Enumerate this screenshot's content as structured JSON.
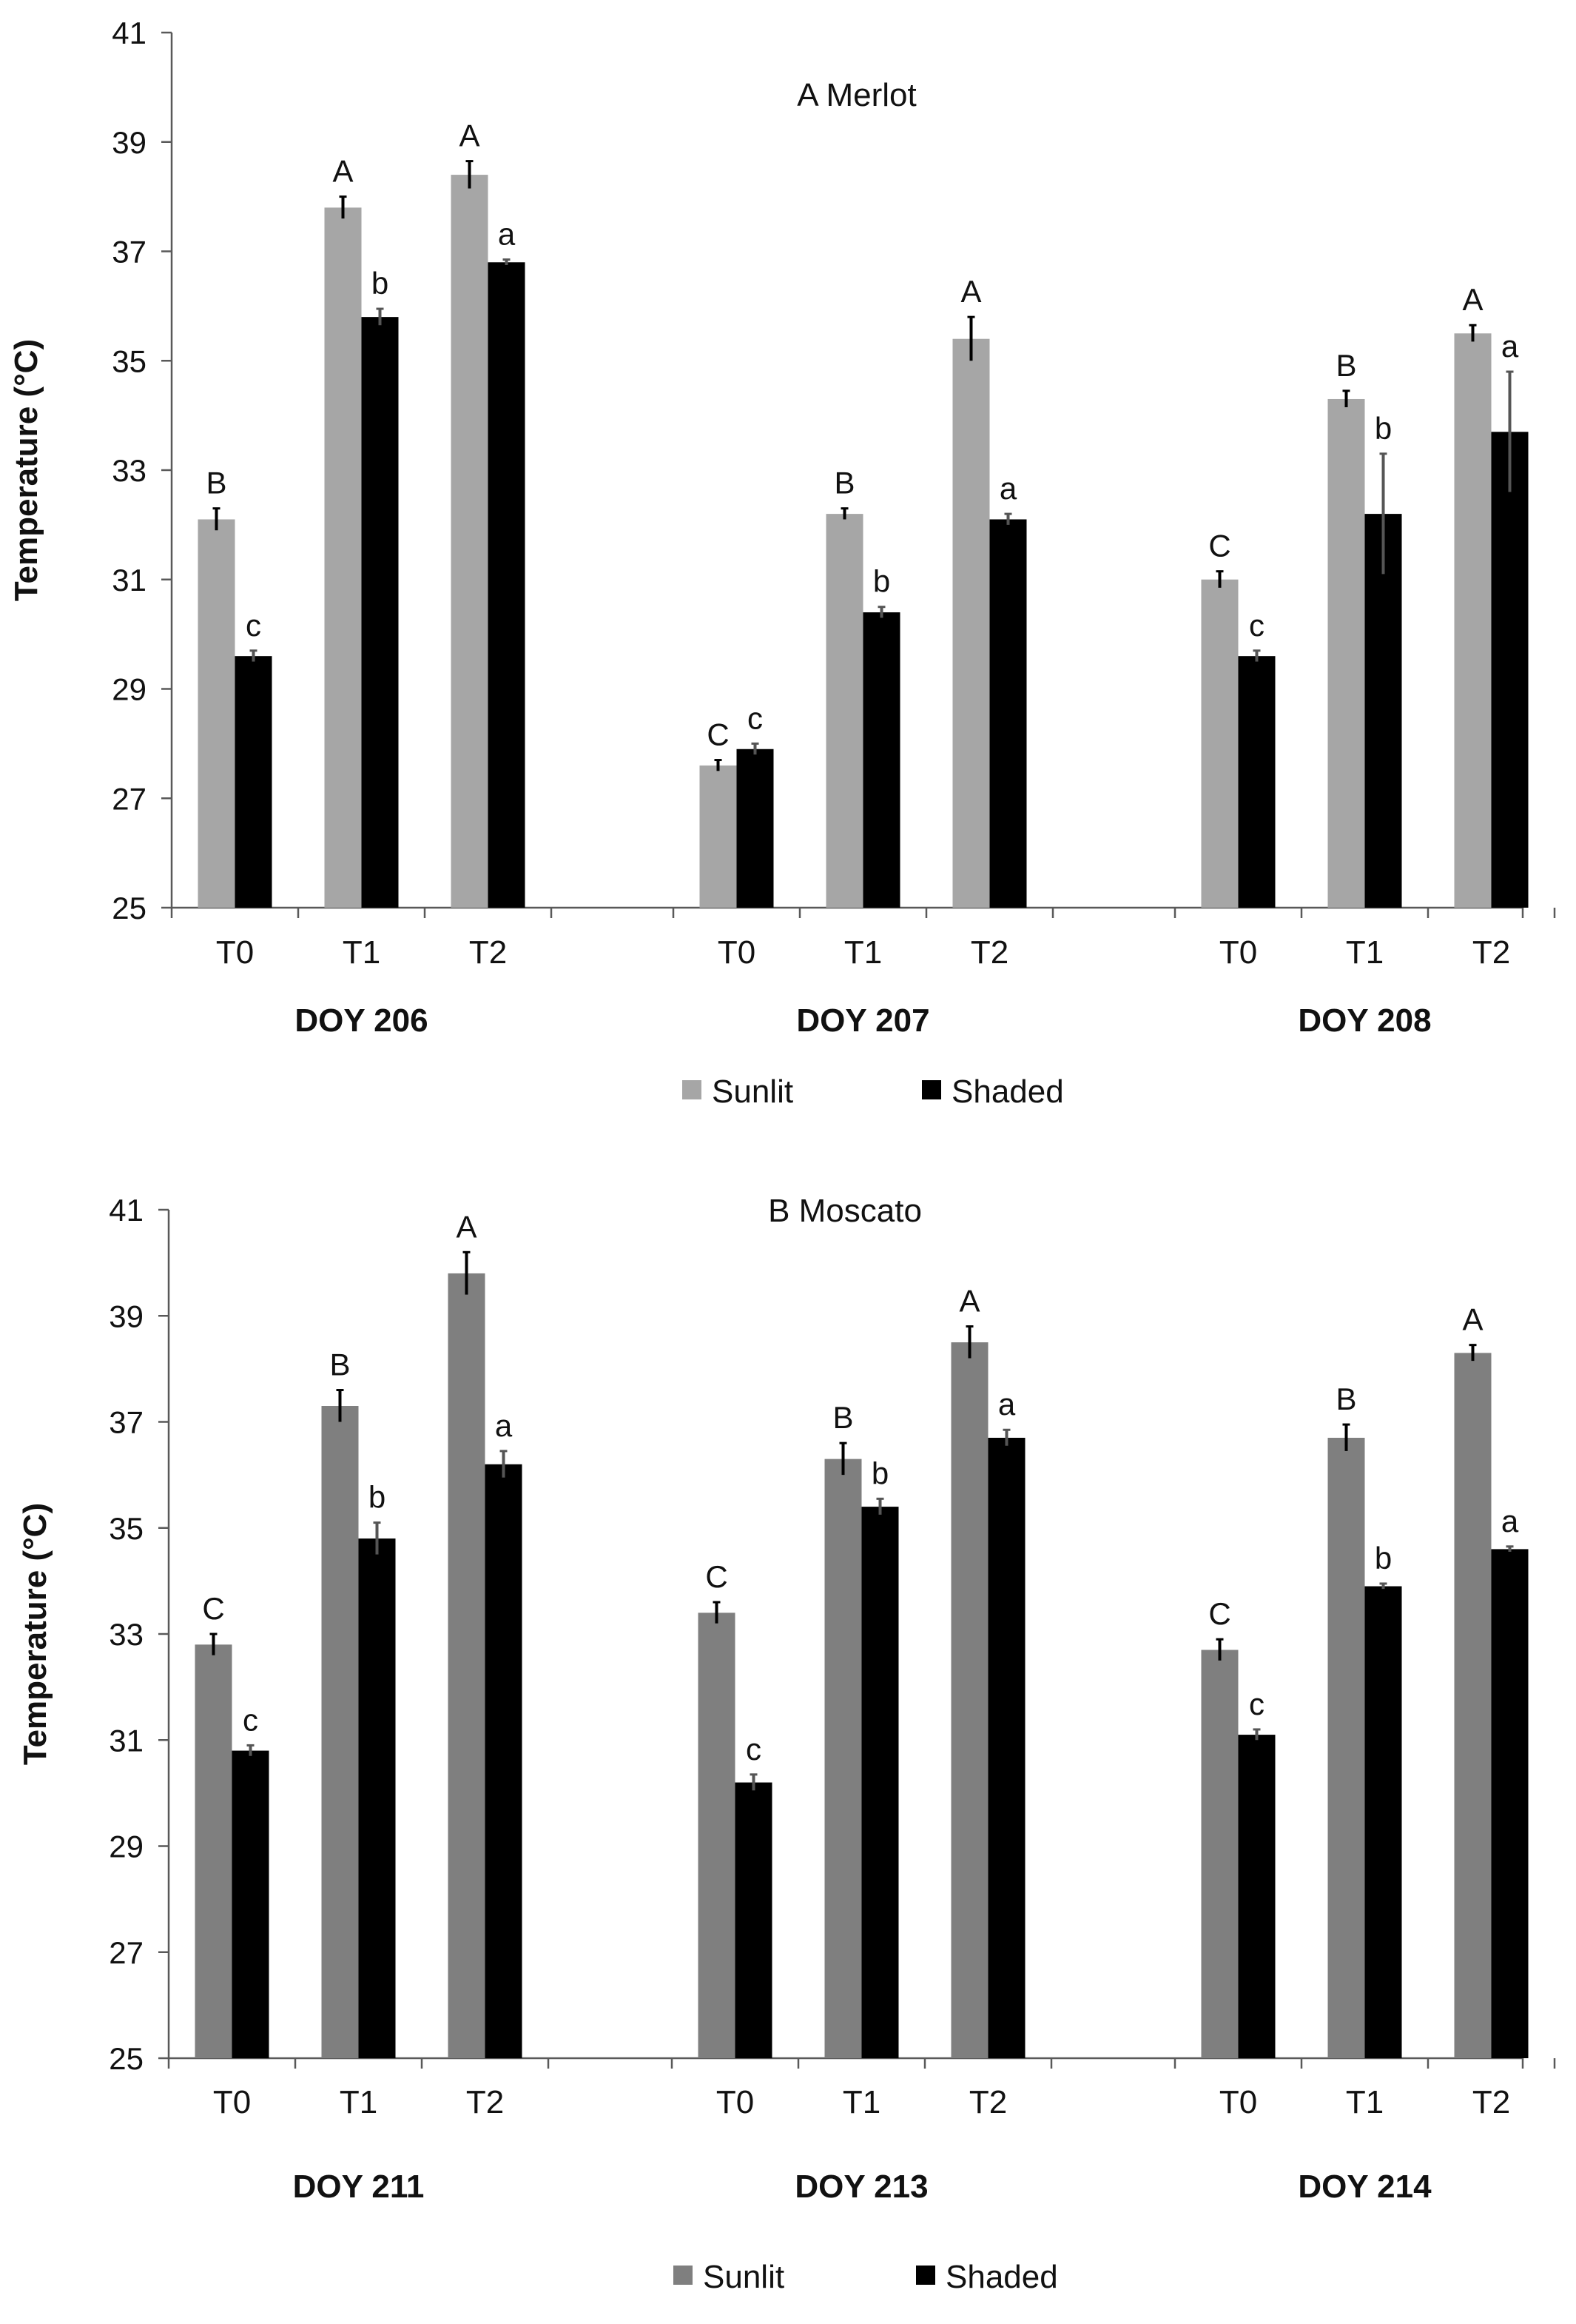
{
  "colors": {
    "panel_a_sunlit": "#a6a6a6",
    "panel_b_sunlit": "#7f7f7f",
    "shaded": "#000000",
    "axis": "#595959",
    "text": "#111111"
  },
  "chart_data": [
    {
      "type": "bar",
      "title": "A Merlot",
      "ylabel": "Temperature (°C)",
      "xlabel": "",
      "ylim": [
        25,
        41
      ],
      "yticks": [
        25,
        27,
        29,
        31,
        33,
        35,
        37,
        39,
        41
      ],
      "grid": false,
      "legend": {
        "position": "bottom-center",
        "entries": [
          "Sunlit",
          "Shaded"
        ]
      },
      "groups": [
        "DOY 206",
        "DOY 207",
        "DOY 208"
      ],
      "categories": [
        "T0",
        "T1",
        "T2"
      ],
      "series": [
        {
          "name": "Sunlit",
          "values": [
            [
              32.1,
              37.8,
              38.4
            ],
            [
              27.6,
              32.2,
              35.4
            ],
            [
              31.0,
              34.3,
              35.5
            ]
          ],
          "errors": [
            [
              0.2,
              0.2,
              0.25
            ],
            [
              0.1,
              0.1,
              0.4
            ],
            [
              0.15,
              0.15,
              0.15
            ]
          ],
          "labels": [
            [
              "B",
              "A",
              "A"
            ],
            [
              "C",
              "B",
              "A"
            ],
            [
              "C",
              "B",
              "A"
            ]
          ]
        },
        {
          "name": "Shaded",
          "values": [
            [
              29.6,
              35.8,
              36.8
            ],
            [
              27.9,
              30.4,
              32.1
            ],
            [
              29.6,
              32.2,
              33.7
            ]
          ],
          "errors": [
            [
              0.1,
              0.15,
              0.05
            ],
            [
              0.1,
              0.1,
              0.1
            ],
            [
              0.1,
              1.1,
              1.1
            ]
          ],
          "labels": [
            [
              "c",
              "b",
              "a"
            ],
            [
              "c",
              "b",
              "a"
            ],
            [
              "c",
              "b",
              "a"
            ]
          ]
        }
      ]
    },
    {
      "type": "bar",
      "title": "B Moscato",
      "ylabel": "Temperature (°C)",
      "xlabel": "",
      "ylim": [
        25,
        41
      ],
      "yticks": [
        25,
        27,
        29,
        31,
        33,
        35,
        37,
        39,
        41
      ],
      "grid": false,
      "legend": {
        "position": "bottom-center",
        "entries": [
          "Sunlit",
          "Shaded"
        ]
      },
      "groups": [
        "DOY 211",
        "DOY 213",
        "DOY 214"
      ],
      "categories": [
        "T0",
        "T1",
        "T2"
      ],
      "series": [
        {
          "name": "Sunlit",
          "values": [
            [
              32.8,
              37.3,
              39.8
            ],
            [
              33.4,
              36.3,
              38.5
            ],
            [
              32.7,
              36.7,
              38.3
            ]
          ],
          "errors": [
            [
              0.2,
              0.3,
              0.4
            ],
            [
              0.2,
              0.3,
              0.3
            ],
            [
              0.2,
              0.25,
              0.15
            ]
          ],
          "labels": [
            [
              "C",
              "B",
              "A"
            ],
            [
              "C",
              "B",
              "A"
            ],
            [
              "C",
              "B",
              "A"
            ]
          ]
        },
        {
          "name": "Shaded",
          "values": [
            [
              30.8,
              34.8,
              36.2
            ],
            [
              30.2,
              35.4,
              36.7
            ],
            [
              31.1,
              33.9,
              34.6
            ]
          ],
          "errors": [
            [
              0.1,
              0.3,
              0.25
            ],
            [
              0.15,
              0.15,
              0.15
            ],
            [
              0.1,
              0.05,
              0.05
            ]
          ],
          "labels": [
            [
              "c",
              "b",
              "a"
            ],
            [
              "c",
              "b",
              "a"
            ],
            [
              "c",
              "b",
              "a"
            ]
          ]
        }
      ]
    }
  ]
}
